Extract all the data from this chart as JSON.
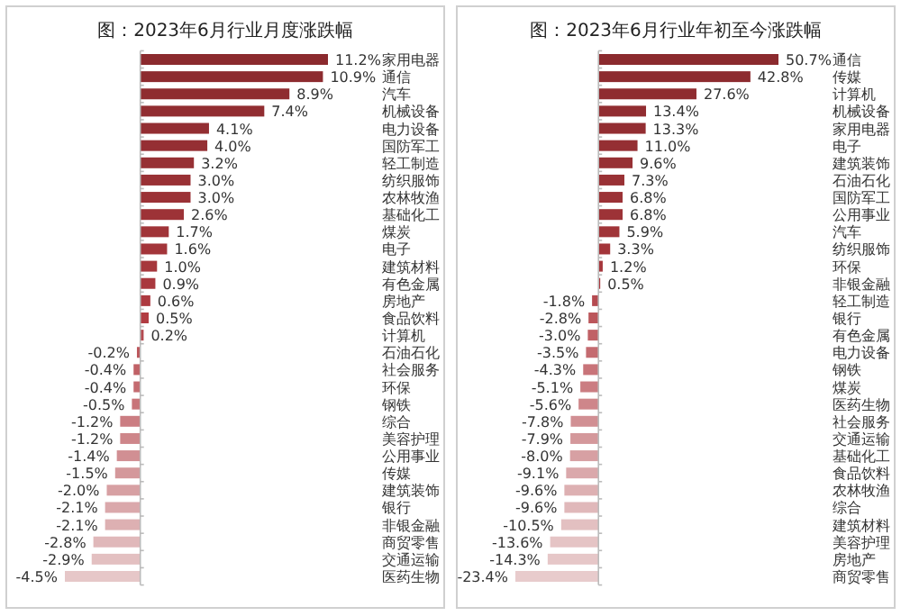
{
  "chart_data": [
    {
      "type": "bar",
      "orientation": "horizontal",
      "title": "图：2023年6月行业月度涨跌幅",
      "categories": [
        "家用电器",
        "通信",
        "汽车",
        "机械设备",
        "电力设备",
        "国防军工",
        "轻工制造",
        "纺织服饰",
        "农林牧渔",
        "基础化工",
        "煤炭",
        "电子",
        "建筑材料",
        "有色金属",
        "房地产",
        "食品饮料",
        "计算机",
        "石油石化",
        "社会服务",
        "环保",
        "钢铁",
        "综合",
        "美容护理",
        "公用事业",
        "传媒",
        "建筑装饰",
        "银行",
        "非银金融",
        "商贸零售",
        "交通运输",
        "医药生物"
      ],
      "values": [
        11.2,
        10.9,
        8.9,
        7.4,
        4.1,
        4.0,
        3.2,
        3.0,
        3.0,
        2.6,
        1.7,
        1.6,
        1.0,
        0.9,
        0.6,
        0.5,
        0.2,
        -0.2,
        -0.4,
        -0.4,
        -0.5,
        -1.2,
        -1.2,
        -1.4,
        -1.5,
        -2.0,
        -2.1,
        -2.1,
        -2.8,
        -2.9,
        -4.5
      ],
      "value_labels": [
        "11.2%",
        "10.9%",
        "8.9%",
        "7.4%",
        "4.1%",
        "4.0%",
        "3.2%",
        "3.0%",
        "3.0%",
        "2.6%",
        "1.7%",
        "1.6%",
        "1.0%",
        "0.9%",
        "0.6%",
        "0.5%",
        "0.2%",
        "-0.2%",
        "-0.4%",
        "-0.4%",
        "-0.5%",
        "-1.2%",
        "-1.2%",
        "-1.4%",
        "-1.5%",
        "-2.0%",
        "-2.1%",
        "-2.1%",
        "-2.8%",
        "-2.9%",
        "-4.5%"
      ],
      "colors": [
        "#8b2a2e",
        "#8d2b2f",
        "#8f2c30",
        "#912d31",
        "#932e32",
        "#952f33",
        "#973034",
        "#993135",
        "#9b3236",
        "#9d3337",
        "#a03438",
        "#a3353a",
        "#a6373c",
        "#a9383e",
        "#ad3a40",
        "#b13c42",
        "#b54a50",
        "#bb565b",
        "#c06166",
        "#c46b70",
        "#c87479",
        "#cb7d82",
        "#ce868a",
        "#d18f93",
        "#d4989b",
        "#d7a0a3",
        "#daa8ab",
        "#ddb0b2",
        "#e0b8ba",
        "#e3c0c1",
        "#e6c7c8"
      ]
    },
    {
      "type": "bar",
      "orientation": "horizontal",
      "title": "图：2023年6月行业年初至今涨跌幅",
      "categories": [
        "通信",
        "传媒",
        "计算机",
        "机械设备",
        "家用电器",
        "电子",
        "建筑装饰",
        "石油石化",
        "国防军工",
        "公用事业",
        "汽车",
        "纺织服饰",
        "环保",
        "非银金融",
        "轻工制造",
        "银行",
        "有色金属",
        "电力设备",
        "钢铁",
        "煤炭",
        "医药生物",
        "社会服务",
        "交通运输",
        "基础化工",
        "食品饮料",
        "农林牧渔",
        "综合",
        "建筑材料",
        "美容护理",
        "房地产",
        "商贸零售"
      ],
      "values": [
        50.7,
        42.8,
        27.6,
        13.4,
        13.3,
        11.0,
        9.6,
        7.3,
        6.8,
        6.8,
        5.9,
        3.3,
        1.2,
        0.5,
        -1.8,
        -2.8,
        -3.0,
        -3.5,
        -4.3,
        -5.1,
        -5.6,
        -7.8,
        -7.9,
        -8.0,
        -9.1,
        -9.6,
        -9.6,
        -10.5,
        -13.6,
        -14.3,
        -23.4
      ],
      "value_labels": [
        "50.7%",
        "42.8%",
        "27.6%",
        "13.4%",
        "13.3%",
        "11.0%",
        "9.6%",
        "7.3%",
        "6.8%",
        "6.8%",
        "5.9%",
        "3.3%",
        "1.2%",
        "0.5%",
        "-1.8%",
        "-2.8%",
        "-3.0%",
        "-3.5%",
        "-4.3%",
        "-5.1%",
        "-5.6%",
        "-7.8%",
        "-7.9%",
        "-8.0%",
        "-9.1%",
        "-9.6%",
        "-9.6%",
        "-10.5%",
        "-13.6%",
        "-14.3%",
        "-23.4%"
      ],
      "colors": [
        "#8b2a2e",
        "#8d2b2f",
        "#8f2c30",
        "#912d31",
        "#932e32",
        "#952f33",
        "#973034",
        "#993135",
        "#9b3236",
        "#9d3337",
        "#a03438",
        "#a3353a",
        "#a6373c",
        "#a9383e",
        "#b54a50",
        "#bb565b",
        "#c06166",
        "#c46b70",
        "#c87479",
        "#cb7d82",
        "#ce868a",
        "#d18f93",
        "#d4989b",
        "#d7a0a3",
        "#daa8ab",
        "#ddb0b2",
        "#e0b8ba",
        "#e3c0c1",
        "#e5c4c5",
        "#e6c7c8",
        "#e8cbcc"
      ]
    }
  ]
}
